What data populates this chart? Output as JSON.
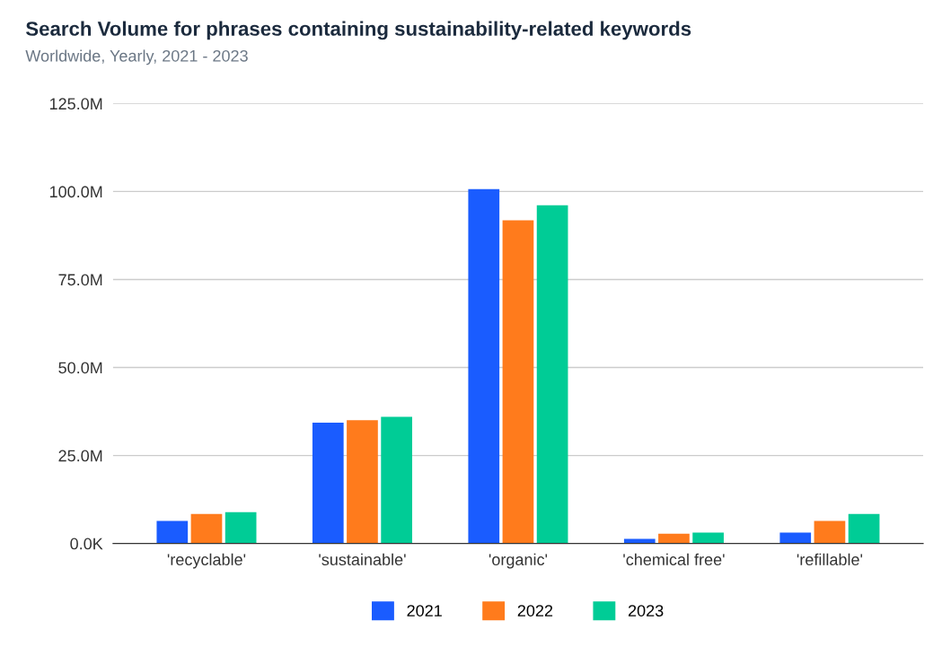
{
  "chart_data": {
    "type": "bar",
    "title": "Search Volume for phrases containing sustainability-related keywords",
    "subtitle": "Worldwide, Yearly, 2021 - 2023",
    "categories": [
      "'recyclable'",
      "'sustainable'",
      "'organic'",
      "'chemical free'",
      "'refillable'"
    ],
    "series": [
      {
        "name": "2021",
        "color": "#1a5cff",
        "values": [
          6.4,
          34.3,
          100.7,
          1.3,
          3.1
        ]
      },
      {
        "name": "2022",
        "color": "#ff7b1c",
        "values": [
          8.4,
          35.0,
          91.8,
          2.8,
          6.4
        ]
      },
      {
        "name": "2023",
        "color": "#00cc96",
        "values": [
          8.9,
          36.0,
          96.1,
          3.1,
          8.4
        ]
      }
    ],
    "ylim": [
      0,
      125
    ],
    "yticks": [
      {
        "value": 0,
        "label": "0.0K"
      },
      {
        "value": 25,
        "label": "25.0M"
      },
      {
        "value": 50,
        "label": "50.0M"
      },
      {
        "value": 75,
        "label": "75.0M"
      },
      {
        "value": 100,
        "label": "100.0M"
      },
      {
        "value": 125,
        "label": "125.0M"
      }
    ],
    "grid": "y",
    "legend": "bottom"
  }
}
